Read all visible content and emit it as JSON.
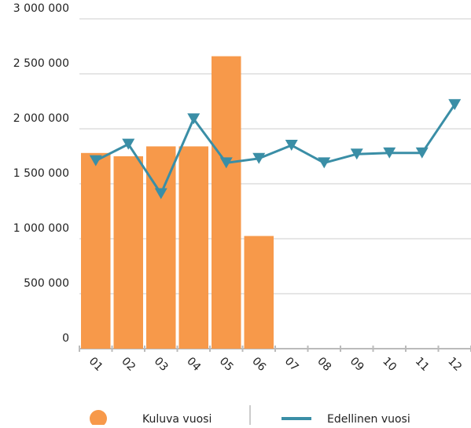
{
  "chart_data": {
    "type": "bar_line",
    "categories": [
      "01",
      "02",
      "03",
      "04",
      "05",
      "06",
      "07",
      "08",
      "09",
      "10",
      "11",
      "12"
    ],
    "series": [
      {
        "name": "Kuluva vuosi",
        "type": "bar",
        "color": "#f7994a",
        "values": [
          1780000,
          1750000,
          1840000,
          1840000,
          2660000,
          1025000,
          null,
          null,
          null,
          null,
          null,
          null
        ]
      },
      {
        "name": "Edellinen vuosi",
        "type": "line",
        "color": "#3a8ea6",
        "values": [
          1710000,
          1860000,
          1410000,
          2090000,
          1690000,
          1730000,
          1850000,
          1690000,
          1770000,
          1780000,
          1780000,
          2220000
        ]
      }
    ],
    "ylim": [
      0,
      3000000
    ],
    "yticks": [
      0,
      {
        "value": 500000,
        "label": "500 000"
      },
      {
        "value": 1000000,
        "label": "1 000 000"
      },
      {
        "value": 1500000,
        "label": "1 500 000"
      },
      {
        "value": 2000000,
        "label": "2 000 000"
      },
      {
        "value": 2500000,
        "label": "2 500 000"
      },
      {
        "value": 3000000,
        "label": "3 000 000"
      }
    ],
    "grid": true
  }
}
